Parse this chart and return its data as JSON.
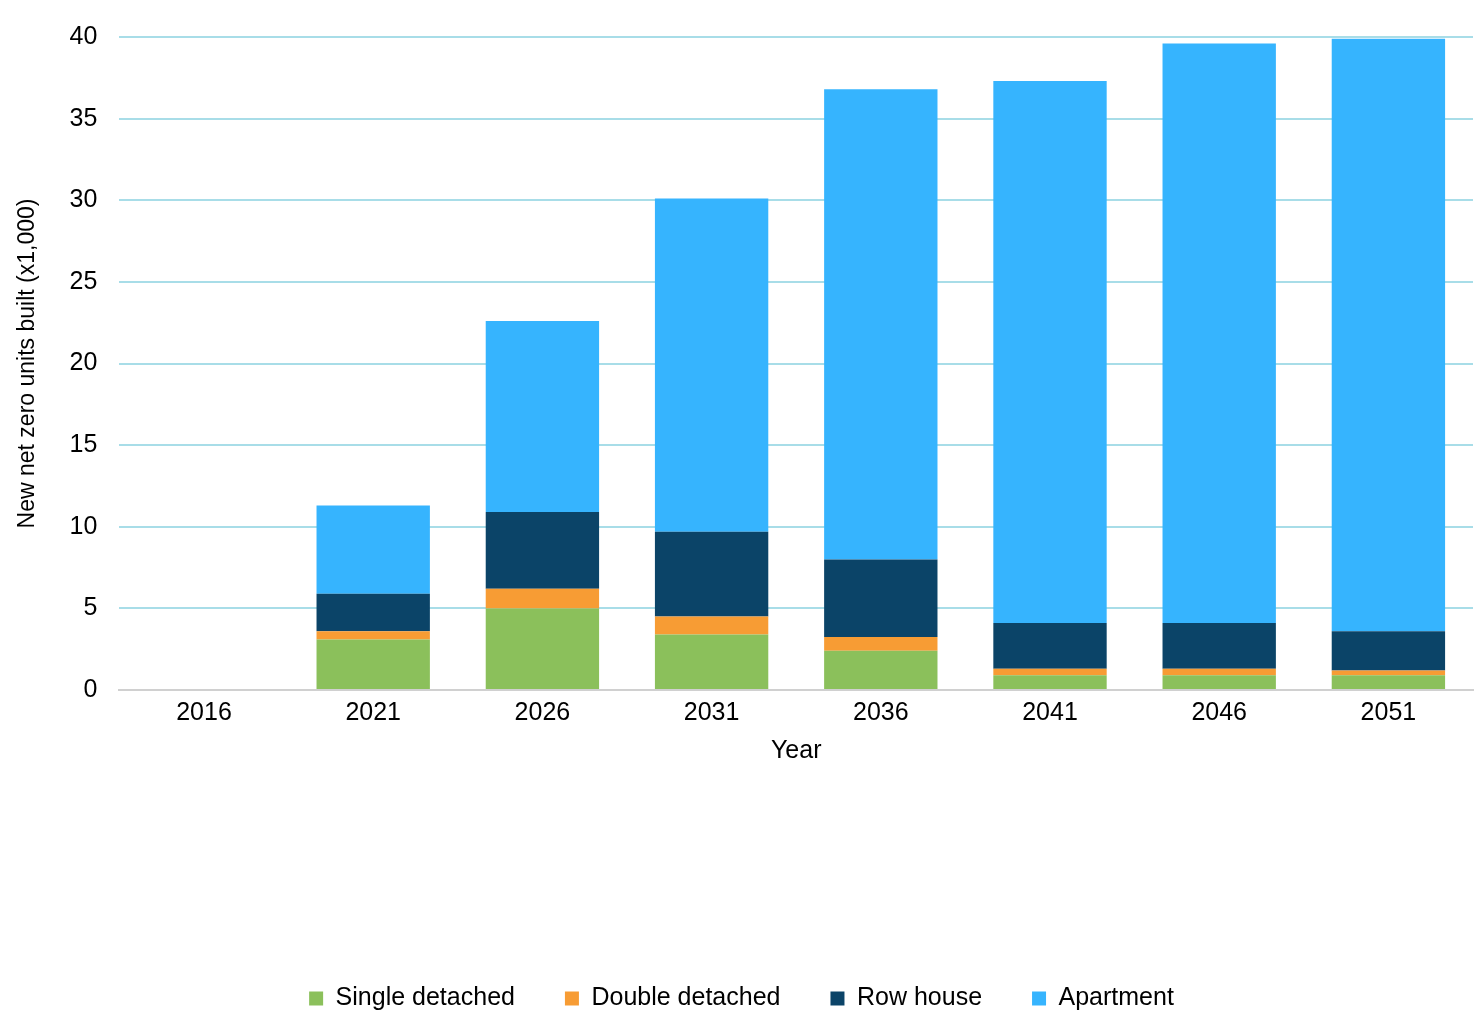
{
  "chart_data": {
    "type": "bar",
    "stacked": true,
    "xlabel": "Year",
    "ylabel": "New net zero units built (x1,000)",
    "categories": [
      "2016",
      "2021",
      "2026",
      "2031",
      "2036",
      "2041",
      "2046",
      "2051"
    ],
    "series": [
      {
        "name": "Single detached",
        "color": "#8bc05b",
        "values": [
          0,
          3.1,
          5.0,
          3.4,
          2.4,
          0.9,
          0.9,
          0.9
        ]
      },
      {
        "name": "Double detached",
        "color": "#f79c34",
        "values": [
          0,
          0.5,
          1.2,
          1.1,
          0.85,
          0.4,
          0.4,
          0.3
        ]
      },
      {
        "name": "Row house",
        "color": "#0b4468",
        "values": [
          0,
          2.3,
          4.7,
          5.2,
          4.75,
          2.8,
          2.8,
          2.4
        ]
      },
      {
        "name": "Apartment",
        "color": "#36b4fe",
        "values": [
          0,
          5.4,
          11.7,
          20.4,
          28.8,
          33.2,
          35.5,
          36.3
        ]
      }
    ],
    "ylim": [
      0,
      40
    ],
    "yticks": [
      0,
      5,
      10,
      15,
      20,
      25,
      30,
      35,
      40
    ],
    "grid": "y",
    "legend": "bottom"
  }
}
